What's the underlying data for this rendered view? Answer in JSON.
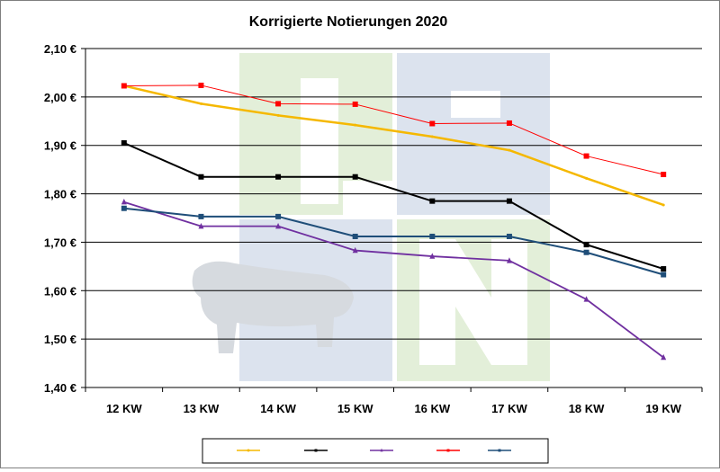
{
  "chart_data": {
    "type": "line",
    "title": "Korrigierte Notierungen 2020",
    "xlabel": "",
    "ylabel": "",
    "categories": [
      "12 KW",
      "13 KW",
      "14 KW",
      "15 KW",
      "16 KW",
      "17 KW",
      "18 KW",
      "19 KW"
    ],
    "ylim": [
      1.4,
      2.1
    ],
    "y_ticks": [
      2.1,
      2.0,
      1.9,
      1.8,
      1.7,
      1.6,
      1.5,
      1.4
    ],
    "y_tick_labels": [
      "2,10 €",
      "2,00 €",
      "1,90 €",
      "1,80 €",
      "1,70 €",
      "1,60 €",
      "1,50 €",
      "1,40 €"
    ],
    "grid": "horizontal",
    "legend_position": "bottom",
    "series": [
      {
        "name": "",
        "color": "#F5B800",
        "marker": "none",
        "values": [
          2.023,
          1.986,
          1.962,
          1.942,
          1.918,
          1.89,
          1.832,
          1.777
        ]
      },
      {
        "name": "",
        "color": "#000000",
        "marker": "square",
        "values": [
          1.905,
          1.835,
          1.835,
          1.835,
          1.785,
          1.785,
          1.695,
          1.645
        ]
      },
      {
        "name": "",
        "color": "#7030A0",
        "marker": "triangle",
        "values": [
          1.783,
          1.733,
          1.733,
          1.683,
          1.671,
          1.662,
          1.582,
          1.462
        ]
      },
      {
        "name": "",
        "color": "#FF0000",
        "marker": "square",
        "values": [
          2.023,
          2.024,
          1.986,
          1.985,
          1.945,
          1.946,
          1.878,
          1.84
        ]
      },
      {
        "name": "",
        "color": "#1F4E79",
        "marker": "square",
        "values": [
          1.77,
          1.753,
          1.753,
          1.712,
          1.712,
          1.712,
          1.679,
          1.633
        ]
      }
    ]
  }
}
